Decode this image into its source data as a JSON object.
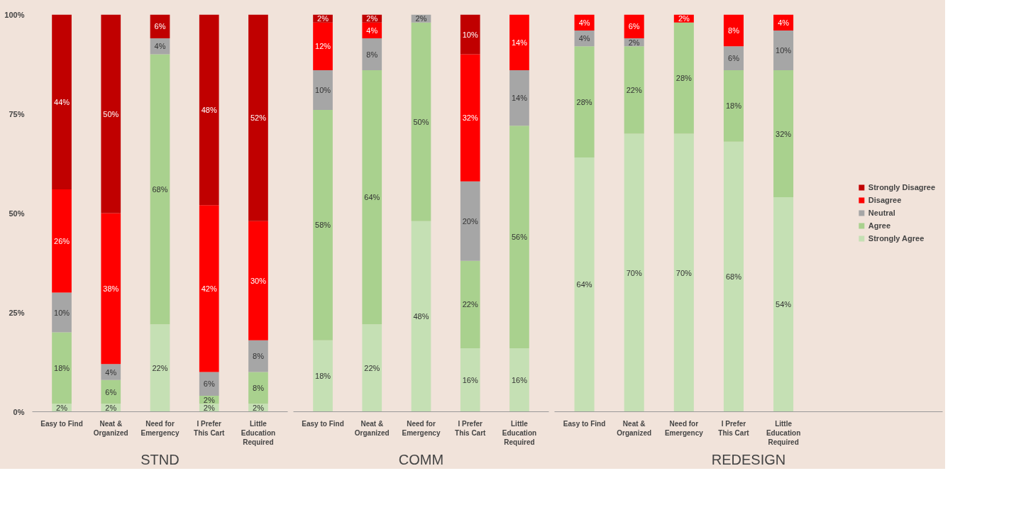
{
  "chart_data": [
    {
      "type": "bar",
      "stacked": true,
      "xlabel": "STND",
      "categories": [
        "Easy to Find",
        "Neat & Organized",
        "Need for Emergency",
        "I Prefer This Cart",
        "Little Education Required"
      ],
      "series": [
        {
          "color": "#c5e0b4",
          "values": [
            2,
            2,
            22,
            2,
            2
          ],
          "value_labels": [
            "2%",
            "2%",
            "22%",
            "2%",
            "2%"
          ]
        },
        {
          "color": "#a9d18e",
          "values": [
            18,
            6,
            68,
            2,
            8
          ],
          "value_labels": [
            "18%",
            "6%",
            "68%",
            "2%",
            "8%"
          ]
        },
        {
          "color": "#a6a6a6",
          "values": [
            10,
            4,
            4,
            6,
            8
          ],
          "value_labels": [
            "10%",
            "4%",
            "4%",
            "6%",
            "8%"
          ]
        },
        {
          "color": "#ff0000",
          "values": [
            26,
            38,
            null,
            42,
            30
          ],
          "value_labels": [
            "26%",
            "38%",
            null,
            "42%",
            "30%"
          ]
        },
        {
          "color": "#c00000",
          "values": [
            44,
            50,
            6,
            48,
            52
          ],
          "value_labels": [
            "44%",
            "50%",
            "6%",
            "48%",
            "52%"
          ]
        }
      ],
      "ylim": [
        0,
        100
      ],
      "yticks": [
        {
          "value": 0,
          "label": "0%"
        },
        {
          "value": 25,
          "label": "25%"
        },
        {
          "value": 50,
          "label": "50%"
        },
        {
          "value": 75,
          "label": "75%"
        },
        {
          "value": 100,
          "label": "100%"
        }
      ],
      "grid": false
    },
    {
      "type": "bar",
      "stacked": true,
      "xlabel": "COMM",
      "tick_labels": "x",
      "categories": [
        "Easy to Find",
        "Neat & Organized",
        "Need for Emergency",
        "I Prefer This Cart",
        "Little Education Required"
      ],
      "series": [
        {
          "color": "#c5e0b4",
          "values": [
            18,
            22,
            48,
            16,
            16
          ],
          "value_labels": [
            "18%",
            "22%",
            "48%",
            "16%",
            "16%"
          ]
        },
        {
          "color": "#a9d18e",
          "values": [
            58,
            64,
            50,
            22,
            56
          ],
          "value_labels": [
            "58%",
            "64%",
            "50%",
            "22%",
            "56%"
          ]
        },
        {
          "color": "#a6a6a6",
          "values": [
            10,
            8,
            2,
            20,
            14
          ],
          "value_labels": [
            "10%",
            "8%",
            "2%",
            "20%",
            "14%"
          ]
        },
        {
          "color": "#ff0000",
          "values": [
            12,
            4,
            null,
            32,
            14
          ],
          "value_labels": [
            "12%",
            "4%",
            null,
            "32%",
            "14%"
          ]
        },
        {
          "color": "#c00000",
          "values": [
            2,
            2,
            null,
            10,
            null
          ],
          "value_labels": [
            "2%",
            "2%",
            null,
            "10%",
            null
          ]
        }
      ],
      "ylim": [
        0,
        100
      ],
      "grid": false
    },
    {
      "type": "bar",
      "stacked": true,
      "xlabel": "REDESIGN",
      "tick_labels": "x",
      "categories": [
        "Easy to Find",
        "Neat & Organized",
        "Need for Emergency",
        "I Prefer This Cart",
        "Little Education Required"
      ],
      "series": [
        {
          "name": "Strongly Agree",
          "color": "#c5e0b4",
          "values": [
            64,
            70,
            70,
            68,
            54
          ],
          "value_labels": [
            "64%",
            "70%",
            "70%",
            "68%",
            "54%"
          ]
        },
        {
          "name": "Agree",
          "color": "#a9d18e",
          "values": [
            28,
            22,
            28,
            18,
            32
          ],
          "value_labels": [
            "28%",
            "22%",
            "28%",
            "18%",
            "32%"
          ]
        },
        {
          "name": "Neutral",
          "color": "#a6a6a6",
          "values": [
            4,
            2,
            null,
            6,
            10
          ],
          "value_labels": [
            "4%",
            "2%",
            null,
            "6%",
            "10%"
          ]
        },
        {
          "name": "Disagree",
          "color": "#ff0000",
          "values": [
            4,
            6,
            2,
            8,
            4
          ],
          "value_labels": [
            "4%",
            "6%",
            "2%",
            "8%",
            "4%"
          ]
        },
        {
          "name": "Strongly Disagree",
          "color": "#c00000",
          "values": [
            null,
            null,
            null,
            null,
            null
          ]
        }
      ],
      "ylim": [
        0,
        100
      ],
      "grid": false,
      "legend": "right"
    }
  ]
}
